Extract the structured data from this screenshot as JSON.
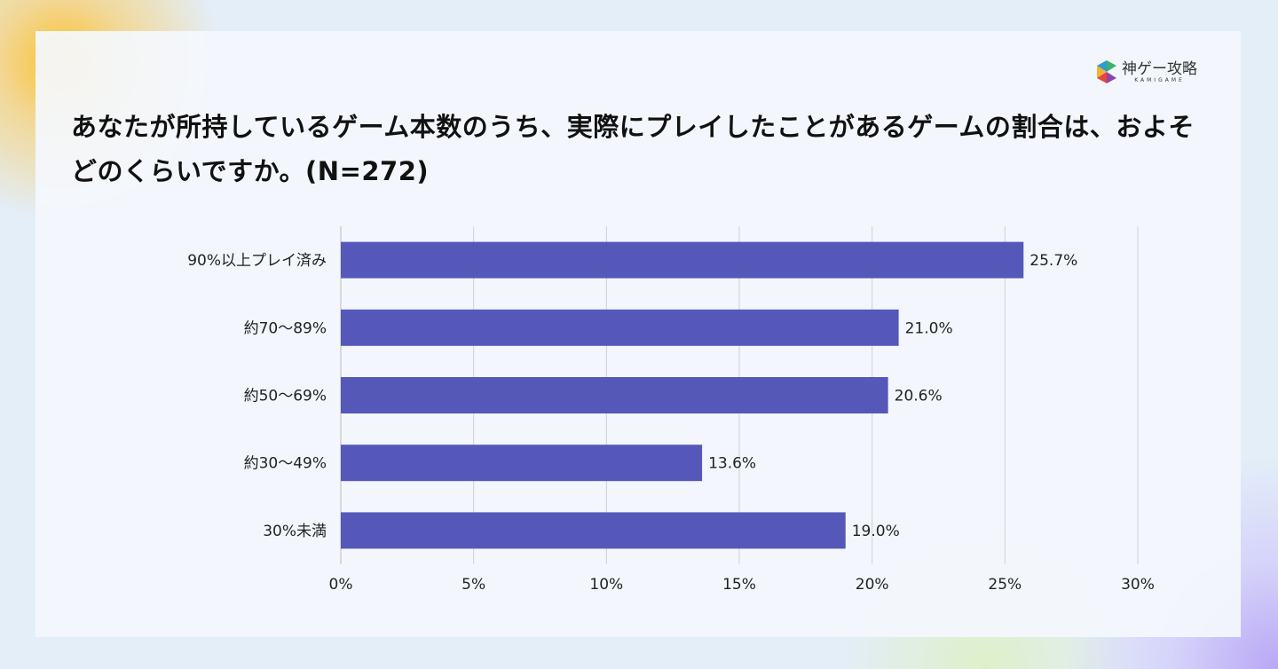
{
  "logo": {
    "main": "神ゲー攻略",
    "sub": "KAMIGAME"
  },
  "chart_data": {
    "type": "bar",
    "orientation": "horizontal",
    "title": "あなたが所持しているゲーム本数のうち、実際にプレイしたことがあるゲームの割合は、およそどのくらいですか。(N=272)",
    "categories": [
      "90%以上プレイ済み",
      "約70〜89%",
      "約50〜69%",
      "約30〜49%",
      "30%未満"
    ],
    "values": [
      25.7,
      21.0,
      20.6,
      13.6,
      19.0
    ],
    "value_labels": [
      "25.7%",
      "21.0%",
      "20.6%",
      "13.6%",
      "19.0%"
    ],
    "xlim": [
      0,
      30
    ],
    "xticks": [
      0,
      5,
      10,
      15,
      20,
      25,
      30
    ],
    "xtick_labels": [
      "0%",
      "5%",
      "10%",
      "15%",
      "20%",
      "25%",
      "30%"
    ],
    "xlabel": "",
    "ylabel": "",
    "grid": true,
    "bar_color": "#5558b9",
    "grid_color": "#d0d0d0"
  }
}
